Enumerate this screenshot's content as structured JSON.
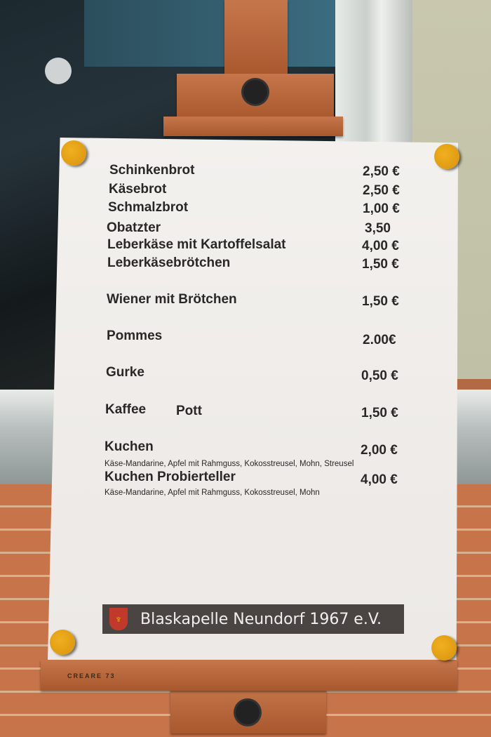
{
  "menu": {
    "items": [
      {
        "name": "Schinkenbrot",
        "price": "2,50 €"
      },
      {
        "name": "Käsebrot",
        "price": "2,50 €"
      },
      {
        "name": "Schmalzbrot",
        "price": "1,00 €"
      },
      {
        "name": "Obatzter",
        "price": "3,50"
      },
      {
        "name": "Leberkäse mit Kartoffelsalat",
        "price": "4,00 €"
      },
      {
        "name": "Leberkäsebrötchen",
        "price": "1,50 €"
      },
      {
        "name": "Wiener mit Brötchen",
        "price": "1,50 €"
      },
      {
        "name": "Pommes",
        "price": "2.00€"
      },
      {
        "name": "Gurke",
        "price": "0,50 €"
      },
      {
        "name": "Kaffee",
        "extra": "Pott",
        "price": "1,50 €"
      },
      {
        "name": "Kuchen",
        "price": "2,00 €",
        "description": "Käse-Mandarine, Apfel mit Rahmguss, Kokosstreusel, Mohn, Streusel"
      },
      {
        "name": "Kuchen Probierteller",
        "price": "4,00 €",
        "description": "Käse-Mandarine, Apfel mit Rahmguss, Kokosstreusel, Mohn"
      }
    ],
    "footer": "Blaskapelle Neundorf 1967 e.V."
  },
  "easel": {
    "brand": "CREARE 73"
  },
  "colors": {
    "magnet": "#e8a315",
    "banner": "#4a4443",
    "wood": "#b8643a"
  }
}
